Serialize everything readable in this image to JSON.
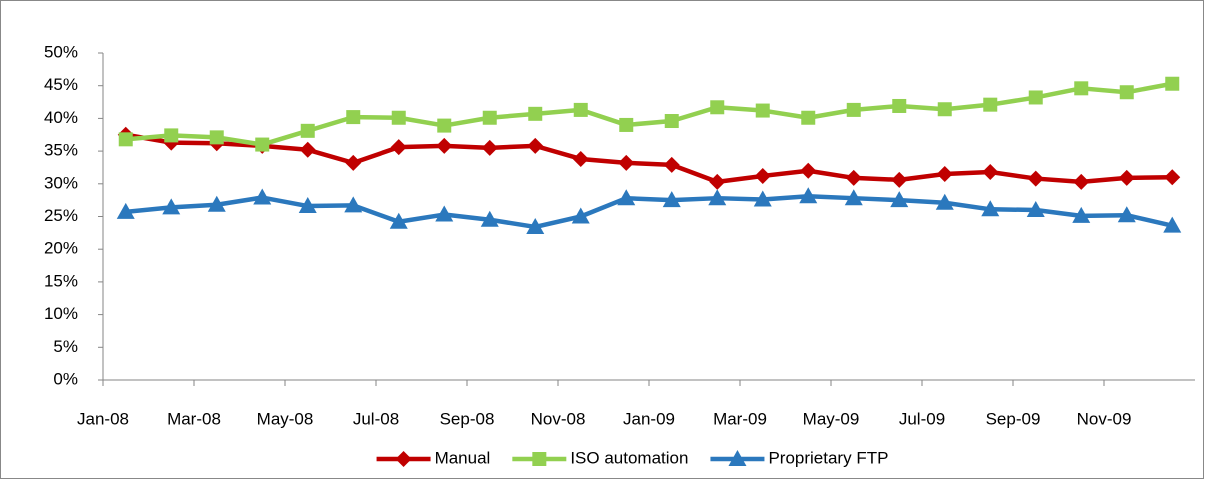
{
  "chart_data": {
    "type": "line",
    "categories": [
      "Jan-08",
      null,
      "Mar-08",
      null,
      "May-08",
      null,
      "Jul-08",
      null,
      "Sep-08",
      null,
      "Nov-08",
      null,
      "Jan-09",
      null,
      "Mar-09",
      null,
      "May-09",
      null,
      "Jul-09",
      null,
      "Sep-09",
      null,
      "Nov-09",
      null
    ],
    "series": [
      {
        "name": "Manual",
        "color": "#c00000",
        "marker": "diamond",
        "values": [
          37.5,
          36.3,
          36.2,
          35.8,
          35.2,
          33.2,
          35.6,
          35.8,
          35.5,
          35.8,
          33.8,
          33.2,
          32.9,
          30.3,
          31.2,
          32.0,
          30.9,
          30.6,
          31.5,
          31.8,
          30.8,
          30.3,
          30.9,
          31.0
        ]
      },
      {
        "name": "ISO automation",
        "color": "#92d050",
        "marker": "square",
        "values": [
          36.8,
          37.4,
          37.1,
          36.0,
          38.1,
          40.2,
          40.1,
          38.9,
          40.1,
          40.7,
          41.3,
          39.0,
          39.6,
          41.7,
          41.2,
          40.1,
          41.3,
          41.9,
          41.4,
          42.1,
          43.2,
          44.6,
          44.0,
          45.3
        ]
      },
      {
        "name": "Proprietary FTP",
        "color": "#2b78bd",
        "marker": "triangle",
        "values": [
          25.7,
          26.4,
          26.8,
          27.9,
          26.6,
          26.7,
          24.2,
          25.3,
          24.5,
          23.4,
          25.0,
          27.8,
          27.5,
          27.8,
          27.6,
          28.1,
          27.8,
          27.5,
          27.1,
          26.1,
          26.0,
          25.1,
          25.2,
          23.6
        ]
      }
    ],
    "ylim": [
      0,
      50
    ],
    "yticks": [
      {
        "value": 0,
        "label": "0%"
      },
      {
        "value": 5,
        "label": "5%"
      },
      {
        "value": 10,
        "label": "10%"
      },
      {
        "value": 15,
        "label": "15%"
      },
      {
        "value": 20,
        "label": "20%"
      },
      {
        "value": 25,
        "label": "25%"
      },
      {
        "value": 30,
        "label": "30%"
      },
      {
        "value": 35,
        "label": "35%"
      },
      {
        "value": 40,
        "label": "40%"
      },
      {
        "value": 45,
        "label": "45%"
      },
      {
        "value": 50,
        "label": "50%"
      }
    ],
    "grid": false,
    "legend": "bottom"
  }
}
